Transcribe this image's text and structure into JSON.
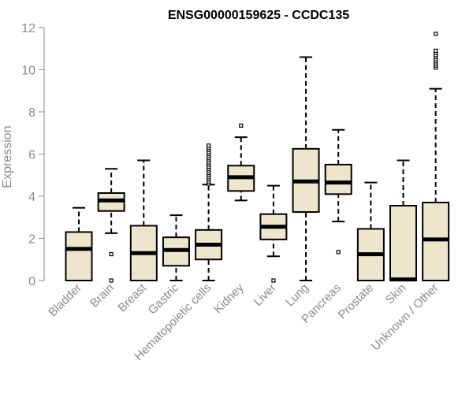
{
  "chart_data": {
    "type": "boxplot",
    "title": "ENSG00000159625 - CCDC135",
    "xlabel": "",
    "ylabel": "Expression",
    "ylim": [
      0,
      12
    ],
    "yticks": [
      0,
      2,
      4,
      6,
      8,
      10,
      12
    ],
    "grid": false,
    "colors": {
      "box_fill": "#ede6cc",
      "stroke": "#000000",
      "axis": "#8a8a8a"
    },
    "categories": [
      "Bladder",
      "Brain",
      "Breast",
      "Gastric",
      "Hematopoietic cells",
      "Kidney",
      "Liver",
      "Lung",
      "Pancreas",
      "Prostate",
      "Skin",
      "Unknown / Other"
    ],
    "boxes": [
      {
        "min": 0,
        "q1": 0,
        "median": 1.5,
        "q3": 2.3,
        "max": 3.45,
        "outliers": []
      },
      {
        "min": 2.25,
        "q1": 3.3,
        "median": 3.8,
        "q3": 4.15,
        "max": 5.3,
        "outliers": [
          1.25,
          0
        ]
      },
      {
        "min": 0,
        "q1": 0,
        "median": 1.3,
        "q3": 2.6,
        "max": 5.7,
        "outliers": []
      },
      {
        "min": 0,
        "q1": 0.7,
        "median": 1.45,
        "q3": 2.05,
        "max": 3.1,
        "outliers": []
      },
      {
        "min": 0,
        "q1": 1.0,
        "median": 1.7,
        "q3": 2.4,
        "max": 4.55,
        "outliers": [
          4.6,
          4.7,
          4.8,
          4.9,
          5.0,
          5.1,
          5.2,
          5.3,
          5.4,
          5.5,
          5.6,
          5.7,
          5.8,
          5.9,
          6.0,
          6.1,
          6.2,
          6.3,
          6.4
        ]
      },
      {
        "min": 3.8,
        "q1": 4.25,
        "median": 4.9,
        "q3": 5.45,
        "max": 6.8,
        "outliers": [
          7.35
        ]
      },
      {
        "min": 1.15,
        "q1": 1.95,
        "median": 2.55,
        "q3": 3.15,
        "max": 4.5,
        "outliers": [
          0
        ]
      },
      {
        "min": 0,
        "q1": 3.25,
        "median": 4.7,
        "q3": 6.25,
        "max": 10.6,
        "outliers": []
      },
      {
        "min": 2.8,
        "q1": 4.1,
        "median": 4.65,
        "q3": 5.5,
        "max": 7.15,
        "outliers": [
          1.35
        ]
      },
      {
        "min": 0,
        "q1": 0,
        "median": 1.25,
        "q3": 2.45,
        "max": 4.65,
        "outliers": []
      },
      {
        "min": 0,
        "q1": 0,
        "median": 0.05,
        "q3": 3.55,
        "max": 5.7,
        "outliers": []
      },
      {
        "min": 0,
        "q1": 0,
        "median": 1.95,
        "q3": 3.7,
        "max": 9.1,
        "outliers": [
          10.1,
          10.2,
          10.3,
          10.4,
          10.5,
          10.6,
          10.7,
          10.8,
          10.9,
          11.7
        ]
      }
    ]
  }
}
